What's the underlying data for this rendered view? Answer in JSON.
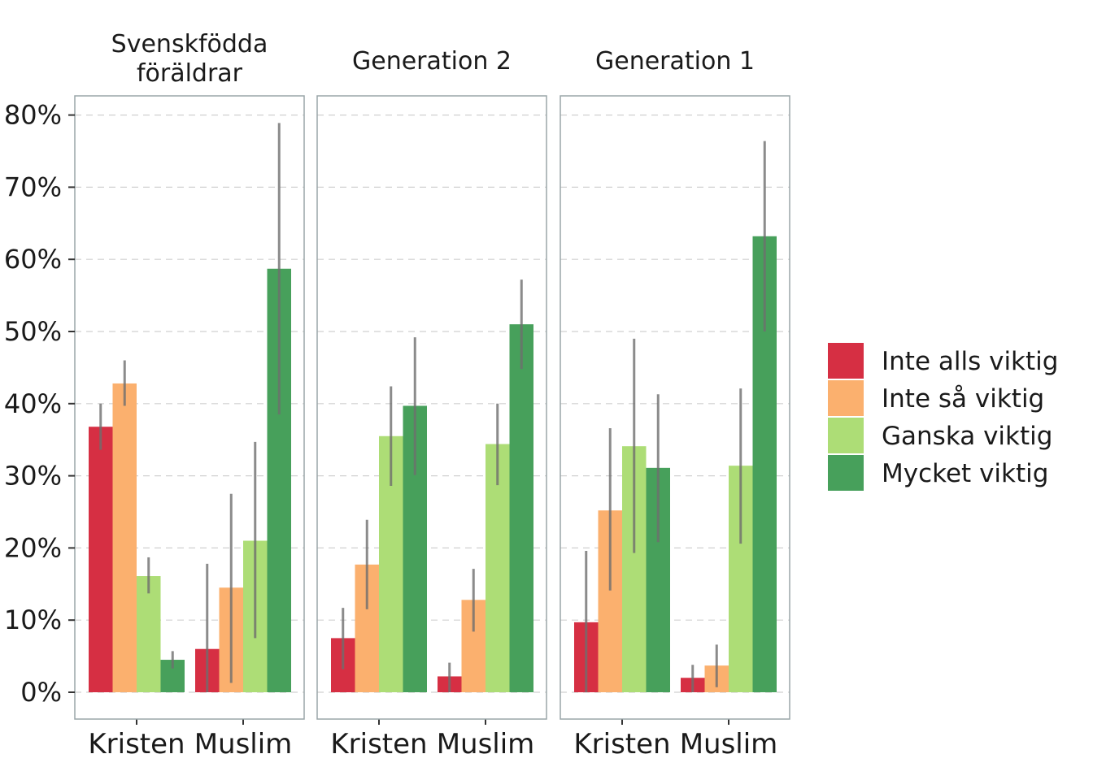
{
  "chart_data": {
    "type": "bar",
    "yaxis": {
      "ylim": [
        0,
        0.84
      ],
      "ticks": [
        0,
        0.1,
        0.2,
        0.3,
        0.4,
        0.5,
        0.6,
        0.7,
        0.8
      ],
      "tick_labels": [
        "0%",
        "10%",
        "20%",
        "30%",
        "40%",
        "50%",
        "60%",
        "70%",
        "80%"
      ],
      "grid": "dashed horizontal"
    },
    "categories": [
      "Kristen",
      "Muslim"
    ],
    "legend": {
      "placement": "right",
      "entries": [
        {
          "name": "Inte alls viktig",
          "color": "#d62f43"
        },
        {
          "name": "Inte så viktig",
          "color": "#fbb06e"
        },
        {
          "name": "Ganska viktig",
          "color": "#addd76"
        },
        {
          "name": "Mycket viktig",
          "color": "#47a05b"
        }
      ]
    },
    "facets": [
      {
        "title": "Svenskfödda föräldrar",
        "title_lines": [
          "Svenskfödda",
          "föräldrar"
        ],
        "series": [
          {
            "name": "Inte alls viktig",
            "values": [
              0.368,
              0.06
            ],
            "lower": [
              0.336,
              0.0
            ],
            "upper": [
              0.4,
              0.178
            ]
          },
          {
            "name": "Inte så viktig",
            "values": [
              0.428,
              0.145
            ],
            "lower": [
              0.397,
              0.013
            ],
            "upper": [
              0.46,
              0.275
            ]
          },
          {
            "name": "Ganska viktig",
            "values": [
              0.161,
              0.21
            ],
            "lower": [
              0.137,
              0.075
            ],
            "upper": [
              0.187,
              0.347
            ]
          },
          {
            "name": "Mycket viktig",
            "values": [
              0.045,
              0.587
            ],
            "lower": [
              0.033,
              0.385
            ],
            "upper": [
              0.057,
              0.789
            ]
          }
        ]
      },
      {
        "title": "Generation 2",
        "title_lines": [
          "Generation 2"
        ],
        "series": [
          {
            "name": "Inte alls viktig",
            "values": [
              0.075,
              0.022
            ],
            "lower": [
              0.032,
              0.0
            ],
            "upper": [
              0.117,
              0.041
            ]
          },
          {
            "name": "Inte så viktig",
            "values": [
              0.177,
              0.128
            ],
            "lower": [
              0.115,
              0.084
            ],
            "upper": [
              0.239,
              0.171
            ]
          },
          {
            "name": "Ganska viktig",
            "values": [
              0.355,
              0.344
            ],
            "lower": [
              0.286,
              0.287
            ],
            "upper": [
              0.424,
              0.4
            ]
          },
          {
            "name": "Mycket viktig",
            "values": [
              0.397,
              0.51
            ],
            "lower": [
              0.301,
              0.448
            ],
            "upper": [
              0.492,
              0.572
            ]
          }
        ]
      },
      {
        "title": "Generation 1",
        "title_lines": [
          "Generation 1"
        ],
        "series": [
          {
            "name": "Inte alls viktig",
            "values": [
              0.097,
              0.02
            ],
            "lower": [
              0.0,
              0.0
            ],
            "upper": [
              0.196,
              0.038
            ]
          },
          {
            "name": "Inte så viktig",
            "values": [
              0.252,
              0.037
            ],
            "lower": [
              0.141,
              0.007
            ],
            "upper": [
              0.366,
              0.066
            ]
          },
          {
            "name": "Ganska viktig",
            "values": [
              0.341,
              0.314
            ],
            "lower": [
              0.193,
              0.206
            ],
            "upper": [
              0.49,
              0.421
            ]
          },
          {
            "name": "Mycket viktig",
            "values": [
              0.311,
              0.632
            ],
            "lower": [
              0.208,
              0.5
            ],
            "upper": [
              0.413,
              0.764
            ]
          }
        ]
      }
    ]
  }
}
